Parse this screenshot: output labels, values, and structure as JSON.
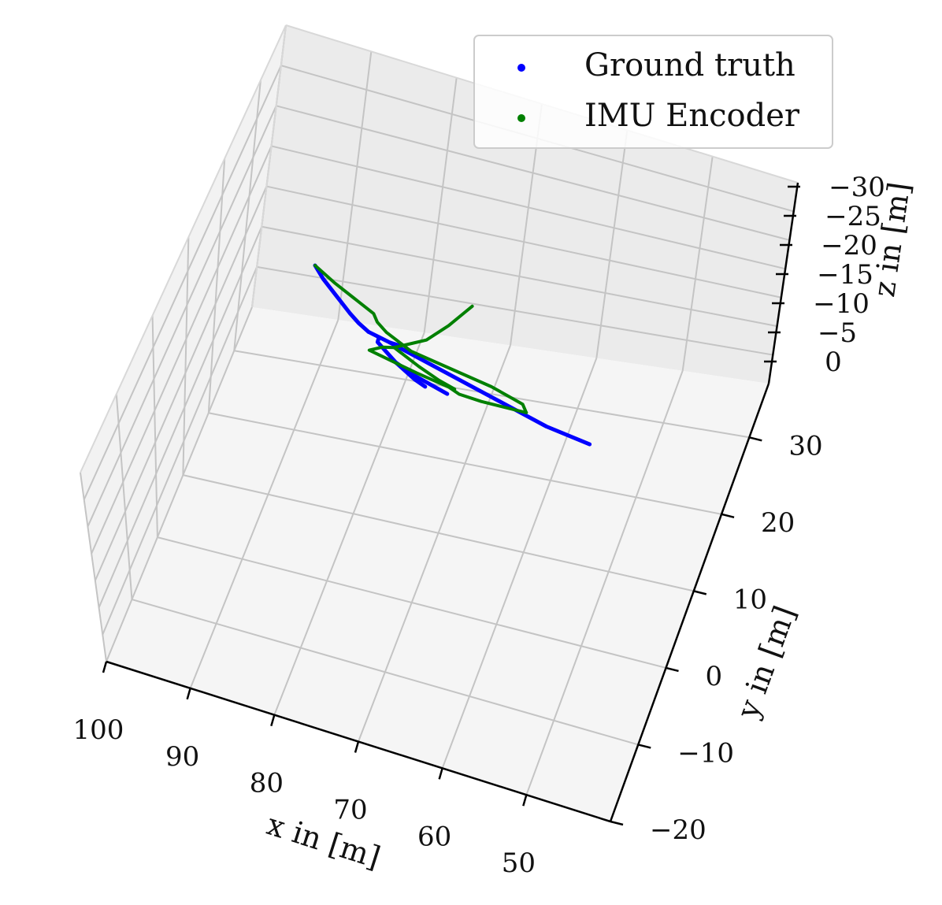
{
  "chart_data": {
    "type": "scatter",
    "projection": "3d",
    "legend_position": "top-right",
    "grid": true,
    "xlabel": "x in [m]",
    "ylabel": "y in [m]",
    "zlabel": "z in [m]",
    "x_ticks": [
      "100",
      "90",
      "80",
      "70",
      "60",
      "50"
    ],
    "y_ticks": [
      "30",
      "20",
      "10",
      "0",
      "−10",
      "−20"
    ],
    "z_ticks": [
      "−30",
      "−25",
      "−20",
      "−15",
      "−10",
      "−5",
      "0"
    ],
    "series": [
      {
        "name": "Ground truth",
        "color": "#0000ff",
        "paths": [
          [
            [
              44,
              13
            ],
            [
              46,
              19
            ],
            [
              49,
              26
            ],
            [
              52,
              33
            ],
            [
              54,
              37
            ],
            [
              56,
              40
            ]
          ],
          [
            [
              56,
              40
            ],
            [
              58,
              41
            ],
            [
              60,
              42
            ],
            [
              62,
              42
            ]
          ],
          [
            [
              58,
              41
            ],
            [
              58,
              44
            ],
            [
              60,
              48
            ],
            [
              62,
              52
            ],
            [
              66,
              56
            ],
            [
              72,
              60
            ]
          ],
          [
            [
              62,
              52
            ],
            [
              64,
              55
            ],
            [
              66,
              58
            ],
            [
              68,
              60
            ]
          ],
          [
            [
              60,
              42
            ],
            [
              70,
              48
            ],
            [
              80,
              54
            ],
            [
              90,
              60
            ],
            [
              98,
              62
            ]
          ]
        ]
      },
      {
        "name": "IMU Encoder",
        "color": "#008000",
        "paths": [
          [
            [
              44,
              13
            ],
            [
              48,
              19
            ],
            [
              52,
              24
            ],
            [
              56,
              29
            ],
            [
              57,
              33
            ],
            [
              59,
              37
            ],
            [
              64,
              43
            ],
            [
              79,
              48
            ],
            [
              85,
              52
            ],
            [
              86,
              56
            ]
          ],
          [
            [
              86,
              56
            ],
            [
              78,
              58
            ],
            [
              74,
              58
            ],
            [
              72,
              56
            ],
            [
              66,
              54
            ],
            [
              57,
              50
            ],
            [
              59,
              46
            ],
            [
              61,
              44
            ]
          ],
          [
            [
              61,
              44
            ],
            [
              66,
              50
            ],
            [
              70,
              54
            ],
            [
              73,
              56
            ]
          ],
          [
            [
              61,
              44
            ],
            [
              62,
              42
            ],
            [
              64,
              38
            ],
            [
              66,
              34
            ],
            [
              69,
              22
            ],
            [
              71,
              12
            ],
            [
              72,
              7
            ]
          ]
        ]
      }
    ]
  }
}
